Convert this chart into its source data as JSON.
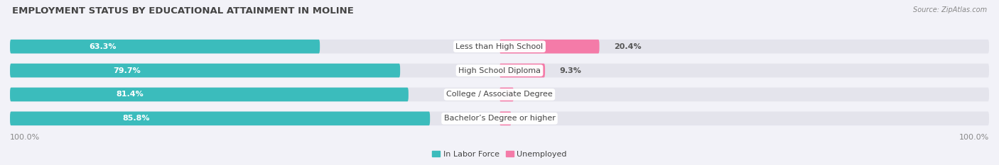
{
  "title": "EMPLOYMENT STATUS BY EDUCATIONAL ATTAINMENT IN MOLINE",
  "source": "Source: ZipAtlas.com",
  "categories": [
    "Less than High School",
    "High School Diploma",
    "College / Associate Degree",
    "Bachelor’s Degree or higher"
  ],
  "labor_force": [
    63.3,
    79.7,
    81.4,
    85.8
  ],
  "unemployed": [
    20.4,
    9.3,
    2.9,
    2.4
  ],
  "labor_force_color": "#3BBCBC",
  "unemployed_color": "#F47BA8",
  "bar_bg_color": "#E4E4EC",
  "bar_bg_shadow": "#D0D0DA",
  "background_color": "#F2F2F8",
  "title_color": "#444444",
  "label_color": "#444444",
  "value_color_left": "#FFFFFF",
  "value_color_right": "#555555",
  "axis_label_color": "#888888",
  "legend_labor": "In Labor Force",
  "legend_unemployed": "Unemployed",
  "x_left_label": "100.0%",
  "x_right_label": "100.0%",
  "title_fontsize": 9.5,
  "bar_label_fontsize": 8,
  "cat_label_fontsize": 8,
  "axis_fontsize": 8,
  "legend_fontsize": 8
}
